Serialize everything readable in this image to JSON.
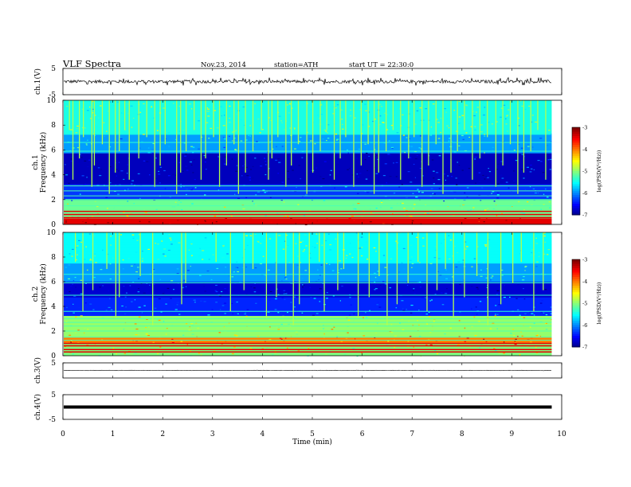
{
  "header": {
    "title": "VLF  Spectra",
    "date": "Nov.23, 2014",
    "station": "station=ATH",
    "start": "start  UT  =    22:30:0"
  },
  "colorbar": {
    "label": "log(PSD(V²/Hz))",
    "ticks": [
      "-3",
      "-4",
      "-5",
      "-6",
      "-7"
    ],
    "range": [
      -7,
      -3
    ]
  },
  "chart_data": [
    {
      "type": "line",
      "panel": "ch1-waveform",
      "ylabel": "ch.1(V)",
      "yticks": [
        "5",
        "-5"
      ],
      "ylim": [
        -5,
        5
      ],
      "baseline": 0,
      "noise_amplitude_v": 0.6,
      "spike_amplitude_v": 1.5,
      "xlim": [
        0,
        10
      ],
      "trace_end_min": 9.8
    },
    {
      "type": "heatmap",
      "panel": "ch1-spectrogram",
      "ylabel": "ch.1\nFrequency  (kHz)",
      "yticks": [
        "10",
        "8",
        "6",
        "4",
        "2",
        "0"
      ],
      "ylim": [
        0,
        10
      ],
      "xlim": [
        0,
        10
      ],
      "trace_end_min": 9.8,
      "lines_khz": [
        0.4,
        0.55,
        0.8,
        1.05,
        1.5,
        2.0,
        2.3,
        2.7,
        3.1,
        5.9,
        6.6
      ],
      "spike_times_min": [
        0.13,
        0.2,
        0.33,
        0.41,
        0.58,
        0.63,
        0.79,
        0.93,
        1.05,
        1.13,
        1.24,
        1.33,
        1.52,
        1.68,
        1.84,
        1.95,
        2.05,
        2.28,
        2.36,
        2.47,
        2.63,
        2.77,
        2.86,
        3.02,
        3.14,
        3.28,
        3.43,
        3.52,
        3.66,
        3.81,
        3.98,
        4.12,
        4.19,
        4.31,
        4.47,
        4.58,
        4.72,
        4.89,
        5.01,
        5.16,
        5.29,
        5.44,
        5.56,
        5.67,
        5.83,
        5.98,
        6.12,
        6.24,
        6.33,
        6.48,
        6.62,
        6.77,
        6.93,
        7.04,
        7.2,
        7.33,
        7.48,
        7.62,
        7.78,
        7.91,
        8.05,
        8.21,
        8.36,
        8.51,
        8.68,
        8.82,
        8.97,
        9.12,
        9.24,
        9.38,
        9.52,
        9.68
      ]
    },
    {
      "type": "heatmap",
      "panel": "ch2-spectrogram",
      "ylabel": "ch.2\nFrequency  (kHz)",
      "yticks": [
        "10",
        "8",
        "6",
        "4",
        "2",
        "0"
      ],
      "ylim": [
        0,
        10
      ],
      "xlim": [
        0,
        10
      ],
      "trace_end_min": 9.8,
      "lines_khz": [
        0.3,
        0.5,
        0.8,
        1.0,
        1.25,
        1.5,
        2.0,
        2.4,
        2.7,
        3.0,
        3.6,
        4.9,
        5.9,
        6.6
      ],
      "spike_times_min": [
        0.25,
        0.4,
        0.6,
        0.88,
        1.06,
        1.13,
        1.55,
        1.8,
        2.38,
        2.46,
        3.07,
        3.36,
        3.63,
        3.81,
        4.08,
        4.28,
        4.47,
        4.62,
        4.74,
        4.94,
        5.14,
        5.24,
        5.51,
        5.63,
        5.92,
        6.14,
        6.34,
        6.5,
        6.7,
        6.92,
        7.12,
        7.3,
        7.5,
        7.67,
        7.83,
        8.05,
        8.3,
        8.52,
        8.78,
        9.02,
        9.19,
        9.44,
        9.63
      ]
    },
    {
      "type": "line",
      "panel": "ch3-waveform",
      "ylabel": "ch.3(V)",
      "yticks": [
        "5"
      ],
      "ylim": [
        -5,
        5
      ],
      "baseline": 0,
      "noise_amplitude_v": 0.15,
      "xlim": [
        0,
        10
      ],
      "trace_end_min": 9.8
    },
    {
      "type": "line",
      "panel": "ch4-waveform",
      "ylabel": "ch.4(V)",
      "yticks": [
        "5",
        "-5"
      ],
      "ylim": [
        -5,
        5
      ],
      "baseline": 0,
      "noise_amplitude_v": 0.2,
      "xlim": [
        0,
        10
      ],
      "trace_end_min": 9.8
    }
  ],
  "xaxis": {
    "label": "Time  (min)",
    "ticks": [
      "0",
      "1",
      "2",
      "3",
      "4",
      "5",
      "6",
      "7",
      "8",
      "9",
      "10"
    ]
  }
}
